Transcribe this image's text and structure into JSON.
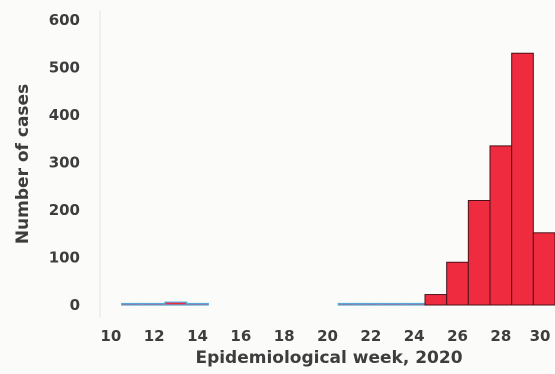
{
  "chart_data": {
    "type": "bar",
    "title": "",
    "xlabel": "Epidemiological week, 2020",
    "ylabel": "Number of cases",
    "x": [
      10,
      11,
      12,
      13,
      14,
      15,
      16,
      17,
      18,
      19,
      20,
      21,
      22,
      23,
      24,
      25,
      26,
      27,
      28,
      29,
      30
    ],
    "values": [
      0,
      1,
      2,
      6,
      2,
      0,
      0,
      0,
      0,
      0,
      0,
      3,
      1,
      2,
      1,
      22,
      90,
      220,
      335,
      530,
      152
    ],
    "xticks": [
      "10",
      "12",
      "14",
      "16",
      "18",
      "20",
      "22",
      "24",
      "26",
      "28",
      "30"
    ],
    "yticks": [
      "0",
      "100",
      "200",
      "300",
      "400",
      "500",
      "600"
    ],
    "ylim": [
      0,
      600
    ],
    "xlim": [
      9.5,
      30.5
    ],
    "grid": false,
    "colors": {
      "bar_fill": "#ee2b3f",
      "bar_stroke": "#4a1218",
      "small_bar_stroke": "#5aa8d8",
      "axis_text": "#3d3d3d"
    }
  }
}
